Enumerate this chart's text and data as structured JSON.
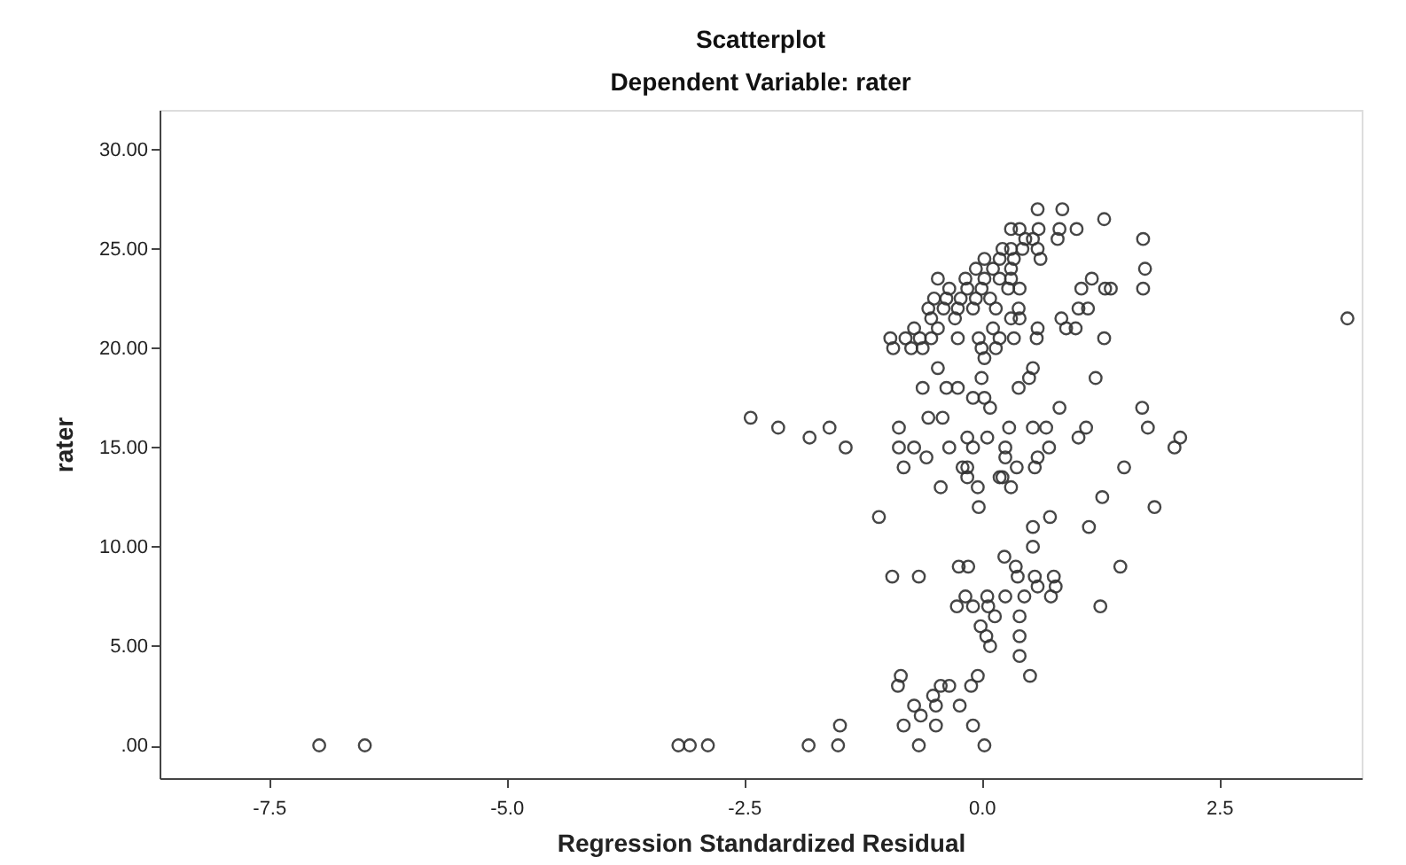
{
  "chart_data": {
    "type": "scatter",
    "title": "Scatterplot",
    "subtitle": "Dependent Variable: rater",
    "xlabel": "Regression Standardized Residual",
    "ylabel": "rater",
    "xlim": [
      -8.65,
      4.0
    ],
    "ylim": [
      -1.65,
      32
    ],
    "xticks": [
      {
        "value": -7.5,
        "label": "-7.5"
      },
      {
        "value": -5,
        "label": "-5.0"
      },
      {
        "value": -2.5,
        "label": "-2.5"
      },
      {
        "value": 0,
        "label": "0.0"
      },
      {
        "value": 2.5,
        "label": "2.5"
      }
    ],
    "yticks": [
      {
        "value": 0,
        "label": ".00"
      },
      {
        "value": 5,
        "label": "5.00"
      },
      {
        "value": 10,
        "label": "10.00"
      },
      {
        "value": 15,
        "label": "15.00"
      },
      {
        "value": 20,
        "label": "20.00"
      },
      {
        "value": 25,
        "label": "25.00"
      },
      {
        "value": 30,
        "label": "30.00"
      }
    ],
    "grid": false,
    "marker": "circle",
    "series": [
      {
        "color": "#333333",
        "x": [
          0.59,
          0.85,
          1.29,
          0.31,
          0.4,
          0.6,
          0.82,
          1.0,
          1.7,
          0.8,
          0.46,
          0.54,
          0.22,
          0.31,
          0.43,
          0.59,
          0.03,
          0.19,
          0.34,
          0.62,
          1.72,
          -0.06,
          0.12,
          0.31,
          -0.46,
          -0.17,
          0.03,
          0.19,
          0.31,
          1.16,
          1.05,
          1.3,
          1.36,
          1.7,
          -0.34,
          -0.15,
          0.0,
          0.28,
          0.4,
          -0.5,
          -0.37,
          -0.22,
          -0.06,
          0.09,
          -0.56,
          -0.4,
          -0.25,
          -0.09,
          0.15,
          0.39,
          1.02,
          1.12,
          -0.53,
          -0.28,
          0.31,
          0.4,
          0.84,
          3.85,
          -0.71,
          -0.46,
          0.12,
          0.59,
          0.89,
          0.99,
          -0.96,
          -0.8,
          -0.65,
          -0.53,
          -0.25,
          -0.03,
          0.19,
          0.34,
          0.58,
          1.29,
          -0.93,
          -0.74,
          -0.62,
          0.0,
          0.15,
          0.03,
          -0.46,
          0.54,
          0.0,
          0.5,
          1.2,
          -0.62,
          -0.37,
          -0.25,
          0.39,
          -0.09,
          0.03,
          0.09,
          0.82,
          1.69,
          -2.43,
          -0.56,
          -0.41,
          -2.14,
          -1.6,
          -0.87,
          0.29,
          0.54,
          0.68,
          1.1,
          1.75,
          -1.81,
          -0.15,
          0.06,
          1.02,
          2.09,
          -1.43,
          -0.87,
          -0.71,
          -0.34,
          -0.09,
          0.25,
          0.71,
          2.03,
          -0.58,
          0.25,
          0.59,
          -0.82,
          -0.2,
          -0.15,
          0.37,
          0.56,
          1.5,
          -0.15,
          0.19,
          0.22,
          -0.43,
          -0.04,
          0.31,
          1.27,
          -0.03,
          1.82,
          -1.08,
          0.72,
          0.54,
          1.13,
          0.54,
          0.24,
          -0.24,
          -0.14,
          0.36,
          1.46,
          -0.94,
          -0.66,
          0.38,
          0.56,
          0.76,
          0.59,
          0.78,
          -0.17,
          0.06,
          0.25,
          0.45,
          0.73,
          -0.26,
          -0.09,
          0.07,
          1.25,
          0.14,
          0.4,
          -0.01,
          0.05,
          0.4,
          0.09,
          0.4,
          -0.85,
          -0.04,
          0.51,
          -0.88,
          -0.43,
          -0.34,
          -0.11,
          -0.51,
          -0.71,
          -0.48,
          -0.23,
          -0.64,
          -1.49,
          -0.82,
          -0.48,
          -0.09,
          -6.97,
          -6.49,
          -3.19,
          -3.07,
          -2.88,
          -1.82,
          -1.51,
          -0.66,
          0.03
        ],
        "values": [
          27,
          27,
          26.5,
          26,
          26,
          26,
          26,
          26,
          25.5,
          25.5,
          25.5,
          25.5,
          25,
          25,
          25,
          25,
          24.5,
          24.5,
          24.5,
          24.5,
          24,
          24,
          24,
          24,
          23.5,
          23.5,
          23.5,
          23.5,
          23.5,
          23.5,
          23,
          23,
          23,
          23,
          23,
          23,
          23,
          23,
          23,
          22.5,
          22.5,
          22.5,
          22.5,
          22.5,
          22,
          22,
          22,
          22,
          22,
          22,
          22,
          22,
          21.5,
          21.5,
          21.5,
          21.5,
          21.5,
          21.5,
          21,
          21,
          21,
          21,
          21,
          21,
          20.5,
          20.5,
          20.5,
          20.5,
          20.5,
          20.5,
          20.5,
          20.5,
          20.5,
          20.5,
          20,
          20,
          20,
          20,
          20,
          19.5,
          19,
          19,
          18.5,
          18.5,
          18.5,
          18,
          18,
          18,
          18,
          17.5,
          17.5,
          17,
          17,
          17,
          16.5,
          16.5,
          16.5,
          16,
          16,
          16,
          16,
          16,
          16,
          16,
          16,
          15.5,
          15.5,
          15.5,
          15.5,
          15.5,
          15,
          15,
          15,
          15,
          15,
          15,
          15,
          15,
          14.5,
          14.5,
          14.5,
          14,
          14,
          14,
          14,
          14,
          14,
          13.5,
          13.5,
          13.5,
          13,
          13,
          13,
          12.5,
          12,
          12,
          11.5,
          11.5,
          11,
          11,
          10,
          9.5,
          9,
          9,
          9,
          9,
          8.5,
          8.5,
          8.5,
          8.5,
          8.5,
          8,
          8,
          7.5,
          7.5,
          7.5,
          7.5,
          7.5,
          7,
          7,
          7,
          7,
          6.5,
          6.5,
          6,
          5.5,
          5.5,
          5,
          4.5,
          3.5,
          3.5,
          3.5,
          3,
          3,
          3,
          3,
          2.5,
          2,
          2,
          2,
          1.5,
          1,
          1,
          1,
          1,
          0,
          0,
          0,
          0,
          0,
          0,
          0,
          0,
          0
        ]
      }
    ]
  }
}
